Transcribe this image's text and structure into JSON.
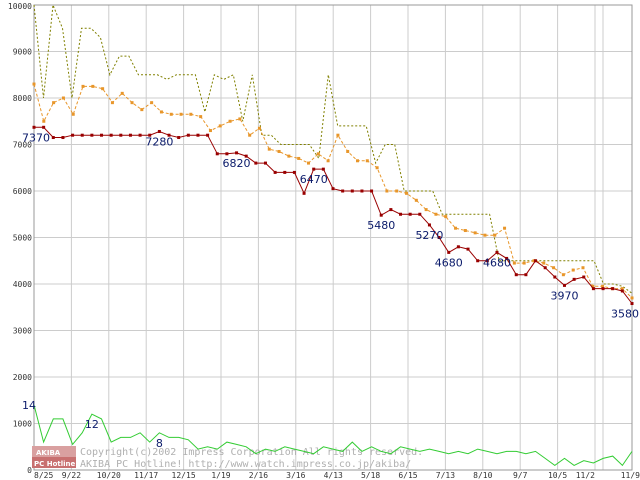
{
  "chart_data": {
    "type": "line",
    "ylim": [
      0,
      10000
    ],
    "y_ticks": [
      0,
      1000,
      2000,
      3000,
      4000,
      5000,
      6000,
      7000,
      8000,
      9000,
      10000
    ],
    "x_tick_labels": [
      "8/25",
      "9/22",
      "10/20",
      "11/17",
      "12/15",
      "1/19",
      "2/16",
      "3/16",
      "4/13",
      "5/18",
      "6/15",
      "7/13",
      "8/10",
      "9/7",
      "10/5",
      "11/2",
      "11/9"
    ],
    "grid": true,
    "series": [
      {
        "role": "max",
        "color": "#808000",
        "style": "dotted",
        "values": [
          10000,
          8000,
          10000,
          9500,
          8000,
          9500,
          9500,
          9300,
          8500,
          8900,
          8900,
          8500,
          8500,
          8500,
          8400,
          8500,
          8500,
          8500,
          7700,
          8500,
          8400,
          8500,
          7500,
          8500,
          7200,
          7200,
          7000,
          7000,
          7000,
          7000,
          6700,
          8500,
          7400,
          7400,
          7400,
          7400,
          6600,
          7000,
          7000,
          6000,
          6000,
          6000,
          6000,
          5500,
          5500,
          5500,
          5500,
          5500,
          5500,
          4500,
          4500,
          4500,
          4500,
          4500,
          4500,
          4500,
          4500,
          4500,
          4500,
          4500,
          4000,
          4000,
          3950,
          3800
        ]
      },
      {
        "role": "avg",
        "color": "#e8962a",
        "style": "dashed-square",
        "values": [
          8300,
          7500,
          7900,
          8000,
          7650,
          8250,
          8250,
          8200,
          7900,
          8100,
          7900,
          7750,
          7900,
          7700,
          7650,
          7650,
          7650,
          7600,
          7300,
          7400,
          7500,
          7550,
          7200,
          7350,
          6900,
          6850,
          6750,
          6700,
          6600,
          6800,
          6650,
          7200,
          6850,
          6650,
          6650,
          6500,
          6000,
          6000,
          5950,
          5800,
          5600,
          5500,
          5450,
          5200,
          5150,
          5100,
          5050,
          5050,
          5200,
          4450,
          4450,
          4500,
          4450,
          4350,
          4200,
          4300,
          4350,
          3950,
          3950,
          3900,
          3900,
          3700
        ]
      },
      {
        "role": "min",
        "color": "#990000",
        "style": "solid-square",
        "values": [
          7370,
          7370,
          7150,
          7150,
          7200,
          7200,
          7200,
          7200,
          7200,
          7200,
          7200,
          7200,
          7200,
          7280,
          7200,
          7150,
          7200,
          7200,
          7200,
          6800,
          6800,
          6820,
          6750,
          6600,
          6600,
          6400,
          6400,
          6400,
          5950,
          6470,
          6470,
          6050,
          6000,
          6000,
          6000,
          6000,
          5480,
          5600,
          5500,
          5500,
          5500,
          5270,
          5000,
          4680,
          4800,
          4750,
          4500,
          4500,
          4680,
          4550,
          4200,
          4200,
          4500,
          4350,
          4150,
          3970,
          4100,
          4150,
          3900,
          3900,
          3900,
          3850,
          3580
        ]
      },
      {
        "role": "count",
        "color": "#33cc33",
        "style": "solid",
        "values": [
          1400,
          600,
          1100,
          1100,
          550,
          800,
          1200,
          1100,
          600,
          700,
          700,
          800,
          600,
          800,
          700,
          700,
          650,
          450,
          500,
          450,
          600,
          550,
          500,
          350,
          450,
          400,
          500,
          450,
          400,
          350,
          500,
          450,
          400,
          600,
          400,
          500,
          400,
          350,
          500,
          450,
          400,
          450,
          400,
          350,
          400,
          350,
          450,
          400,
          350,
          400,
          400,
          350,
          400,
          250,
          100,
          250,
          100,
          200,
          150,
          250,
          300,
          100,
          400
        ]
      }
    ],
    "point_labels": [
      {
        "text": "7370",
        "series": 2,
        "index": 0
      },
      {
        "text": "7280",
        "series": 2,
        "index": 13
      },
      {
        "text": "6820",
        "series": 2,
        "index": 21
      },
      {
        "text": "6470",
        "series": 2,
        "index": 29
      },
      {
        "text": "5480",
        "series": 2,
        "index": 36
      },
      {
        "text": "5270",
        "series": 2,
        "index": 41
      },
      {
        "text": "4680",
        "series": 2,
        "index": 43
      },
      {
        "text": "4680",
        "series": 2,
        "index": 48
      },
      {
        "text": "3970",
        "series": 2,
        "index": 55
      },
      {
        "text": "3580",
        "series": 2,
        "index": 62
      },
      {
        "text": "14",
        "series": 3,
        "index": 0
      },
      {
        "text": "12",
        "series": 3,
        "index": 6
      },
      {
        "text": "8",
        "series": 3,
        "index": 13
      }
    ],
    "watermark": {
      "badge_top": "AKIBA",
      "badge_bottom": "PC Hotline!",
      "line1": "Copyright(c)2002 Impress Corporation All rights reserved.",
      "line2": "AKIBA PC Hotline!  http://www.watch.impress.co.jp/akiba/"
    }
  }
}
